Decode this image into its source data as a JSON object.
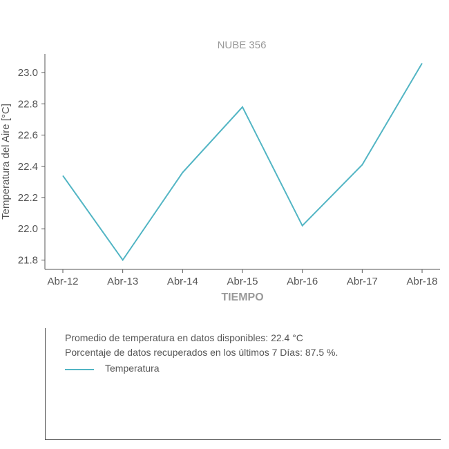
{
  "chart_data": {
    "type": "line",
    "title": "NUBE 356",
    "xlabel": "TIEMPO",
    "ylabel": "Temperatura del Aire [°C]",
    "categories": [
      "Abr-12",
      "Abr-13",
      "Abr-14",
      "Abr-15",
      "Abr-16",
      "Abr-17",
      "Abr-18"
    ],
    "y_ticks": [
      "21.8",
      "22.0",
      "22.2",
      "22.4",
      "22.6",
      "22.8",
      "23.0"
    ],
    "ylim": [
      21.74,
      23.12
    ],
    "grid": false,
    "series": [
      {
        "name": "Temperatura",
        "color": "#52b5c4",
        "values": [
          22.34,
          21.8,
          22.36,
          22.78,
          22.02,
          22.41,
          23.06
        ]
      }
    ]
  },
  "info": {
    "average_line": "Promedio de temperatura en datos disponibles: 22.4 °C",
    "recovered_line": "Porcentaje de datos recuperados en los últimos 7 Días: 87.5 %.",
    "legend_label": "Temperatura"
  }
}
